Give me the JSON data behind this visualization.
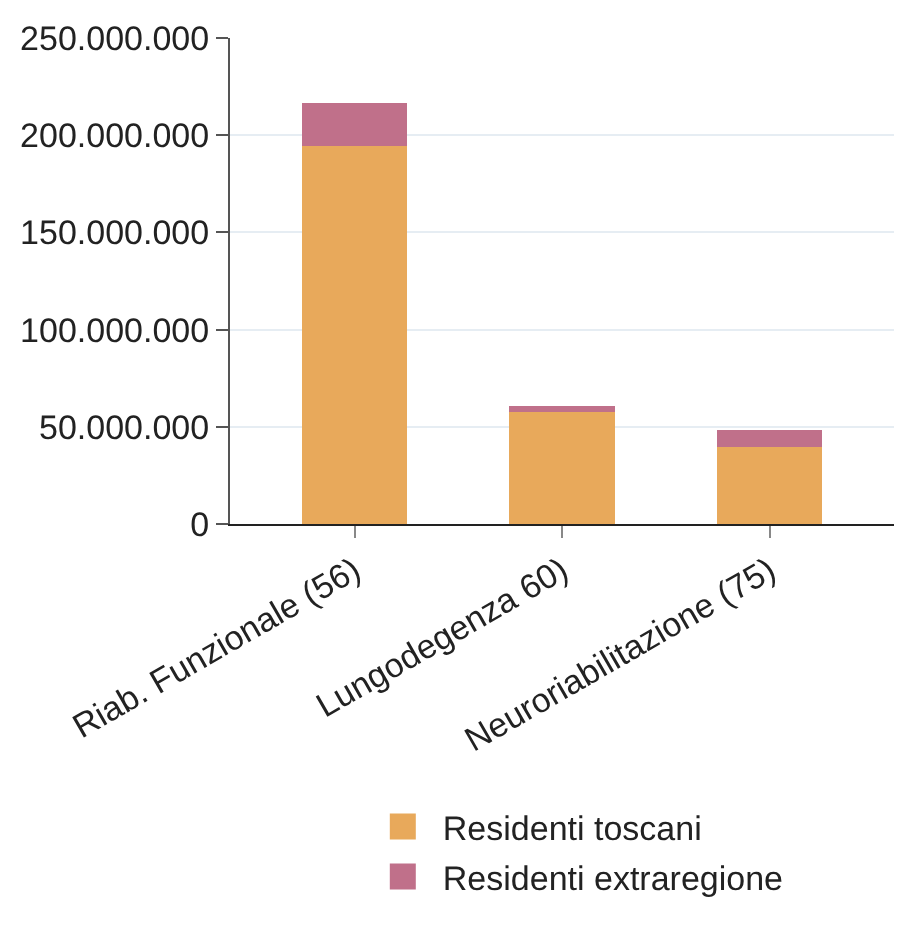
{
  "chart_data": {
    "type": "bar",
    "stacked": true,
    "categories": [
      "Riab. Funzionale (56)",
      "Lungodegenza 60)",
      "Neuroriabilitazione (75)"
    ],
    "series": [
      {
        "name": "Residenti toscani",
        "color": "#e8a95b",
        "values": [
          195000000,
          58000000,
          40000000
        ]
      },
      {
        "name": "Residenti extraregione",
        "color": "#c0708a",
        "values": [
          21000000,
          2000000,
          8000000
        ]
      }
    ],
    "ylim": [
      0,
      250000000
    ],
    "yticks": [
      {
        "value": 0,
        "label": "0"
      },
      {
        "value": 50000000,
        "label": "50.000.000"
      },
      {
        "value": 100000000,
        "label": "100.000.000"
      },
      {
        "value": 150000000,
        "label": "150.000.000"
      },
      {
        "value": 200000000,
        "label": "200.000.000"
      },
      {
        "value": 250000000,
        "label": "250.000.000"
      }
    ],
    "grid": "y",
    "legend": "bottom"
  }
}
